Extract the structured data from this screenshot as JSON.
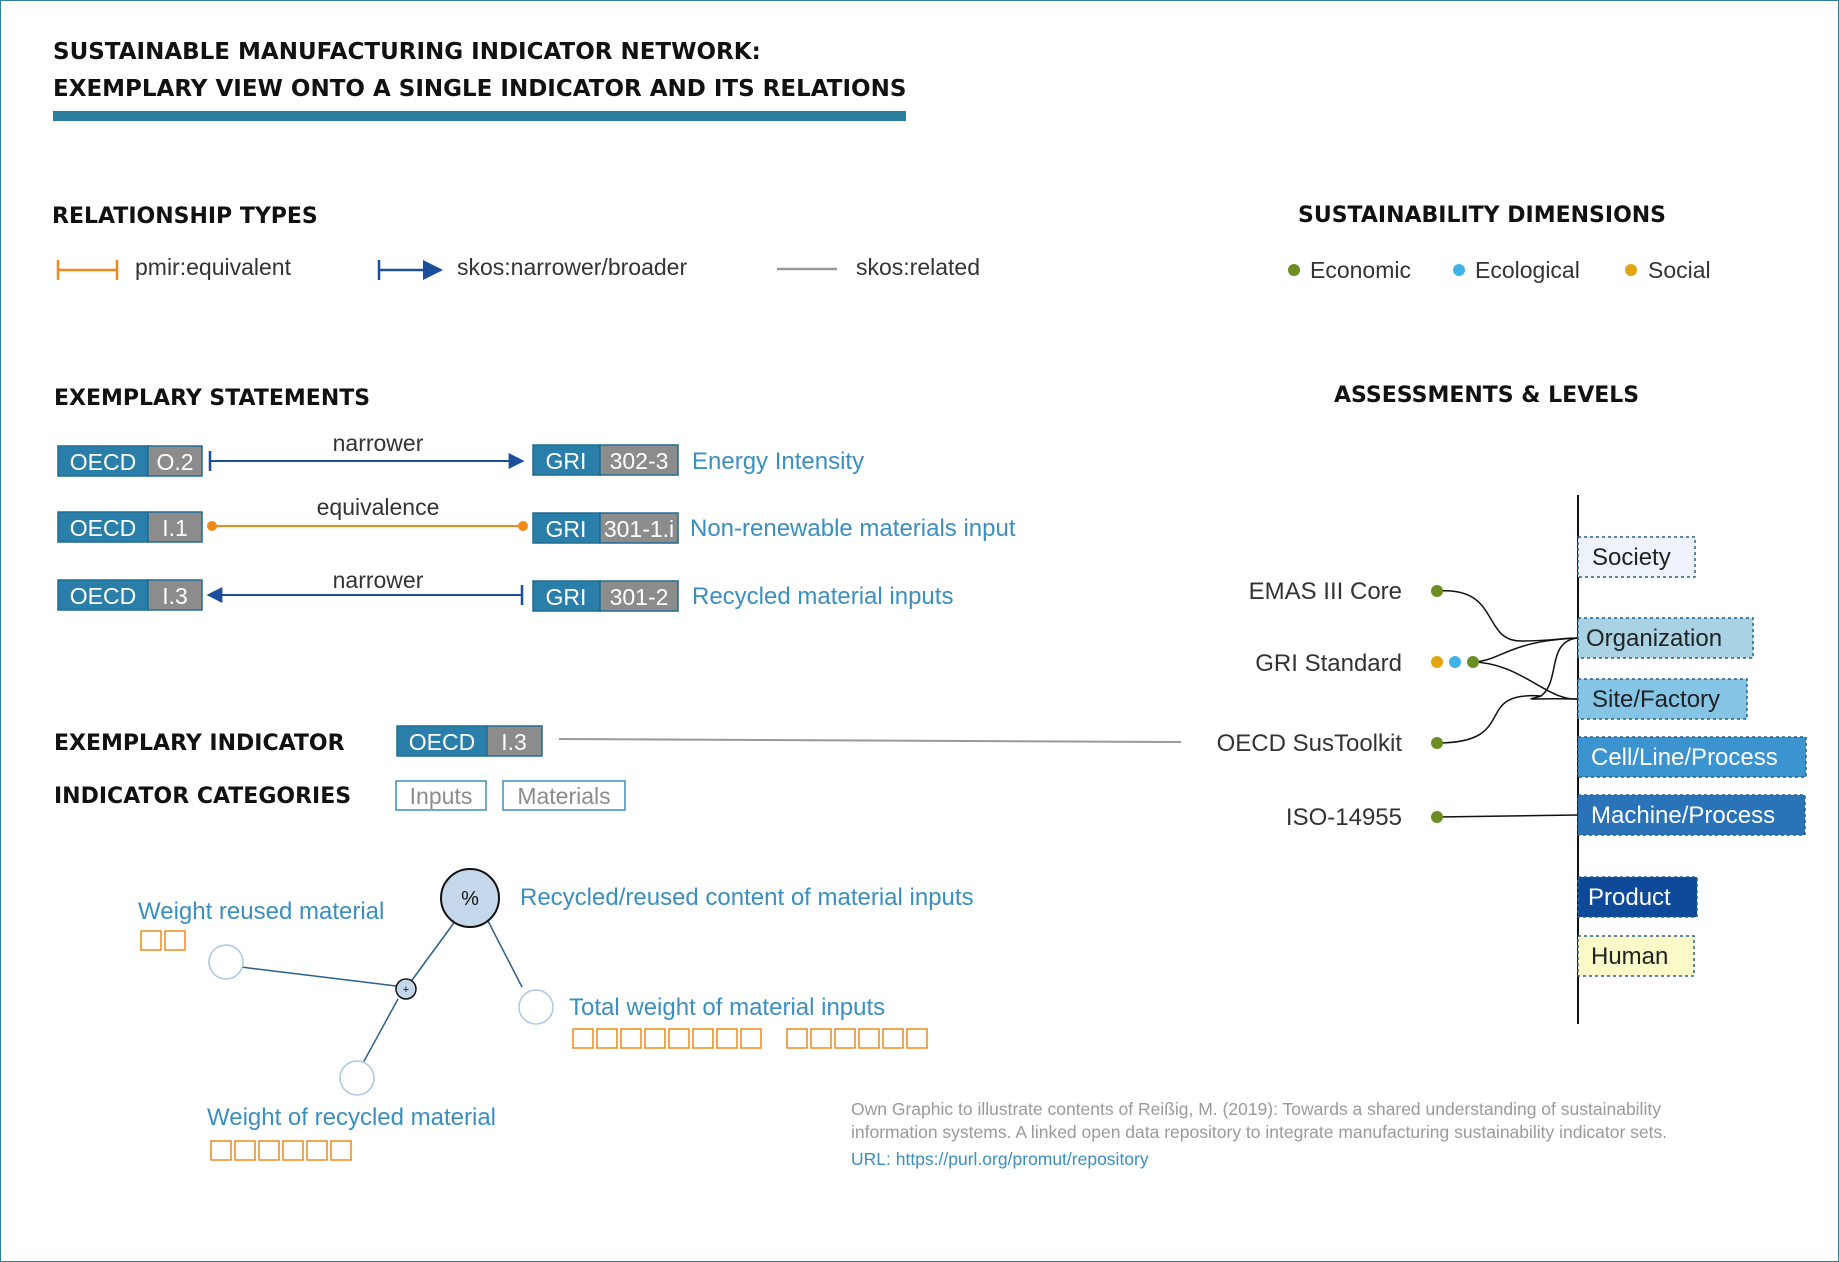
{
  "title": {
    "line1": "SUSTAINABLE MANUFACTURING INDICATOR NETWORK:",
    "line2": "EXEMPLARY VIEW ONTO A SINGLE INDICATOR AND ITS RELATIONS"
  },
  "relationship_types": {
    "heading": "RELATIONSHIP TYPES",
    "items": [
      {
        "label": "pmir:equivalent",
        "color": "#f0891a"
      },
      {
        "label": "skos:narrower/broader",
        "color": "#1b4f9c"
      },
      {
        "label": "skos:related",
        "color": "#999999"
      }
    ]
  },
  "dimensions": {
    "heading": "SUSTAINABILITY DIMENSIONS",
    "items": [
      {
        "label": "Economic",
        "color": "#6b8e23"
      },
      {
        "label": "Ecological",
        "color": "#3fb3e8"
      },
      {
        "label": "Social",
        "color": "#e3a412"
      }
    ]
  },
  "statements": {
    "heading": "EXEMPLARY STATEMENTS",
    "rows": [
      {
        "left_set": "OECD",
        "left_code": "O.2",
        "relation": "narrower",
        "right_set": "GRI",
        "right_code": "302-3",
        "name": "Energy Intensity"
      },
      {
        "left_set": "OECD",
        "left_code": "I.1",
        "relation": "equivalence",
        "right_set": "GRI",
        "right_code": "301-1.i",
        "name": "Non-renewable materials input"
      },
      {
        "left_set": "OECD",
        "left_code": "I.3",
        "relation": "narrower",
        "right_set": "GRI",
        "right_code": "301-2",
        "name": "Recycled material inputs"
      }
    ]
  },
  "indicator": {
    "heading": "EXEMPLARY INDICATOR",
    "set": "OECD",
    "code": "I.3",
    "categories_heading": "INDICATOR CATEGORIES",
    "categories": [
      "Inputs",
      "Materials"
    ]
  },
  "formula": {
    "result_symbol": "%",
    "operator_symbol": "+",
    "result_label": "Recycled/reused content of material inputs",
    "nodes": [
      {
        "label": "Weight reused material",
        "boxes": 2
      },
      {
        "label": "Weight of recycled material",
        "boxes": 6
      },
      {
        "label": "Total weight of material inputs",
        "boxes": 14
      }
    ]
  },
  "assessments": {
    "heading": "ASSESSMENTS & LEVELS",
    "items": [
      {
        "label": "EMAS III Core"
      },
      {
        "label": "GRI Standard"
      },
      {
        "label": "OECD SusToolkit"
      },
      {
        "label": "ISO-14955"
      }
    ],
    "levels": [
      {
        "label": "Society",
        "fill": "#eef2fa",
        "text": "#222222"
      },
      {
        "label": "Organization",
        "fill": "#a9d2e4",
        "text": "#222222"
      },
      {
        "label": "Site/Factory",
        "fill": "#85c4e4",
        "text": "#222222"
      },
      {
        "label": "Cell/Line/Process",
        "fill": "#3b93cf",
        "text": "#ffffff"
      },
      {
        "label": "Machine/Process",
        "fill": "#2a73b8",
        "text": "#ffffff"
      },
      {
        "label": "Product",
        "fill": "#0e4a99",
        "text": "#ffffff"
      },
      {
        "label": "Human",
        "fill": "#fafac8",
        "text": "#222222"
      }
    ]
  },
  "footer": {
    "line1": "Own Graphic to illustrate contents of Reißig, M. (2019): Towards a shared understanding of sustainability",
    "line2": "information systems. A linked open data repository to integrate manufacturing sustainability indicator sets.",
    "url": "URL: https://purl.org/promut/repository"
  }
}
